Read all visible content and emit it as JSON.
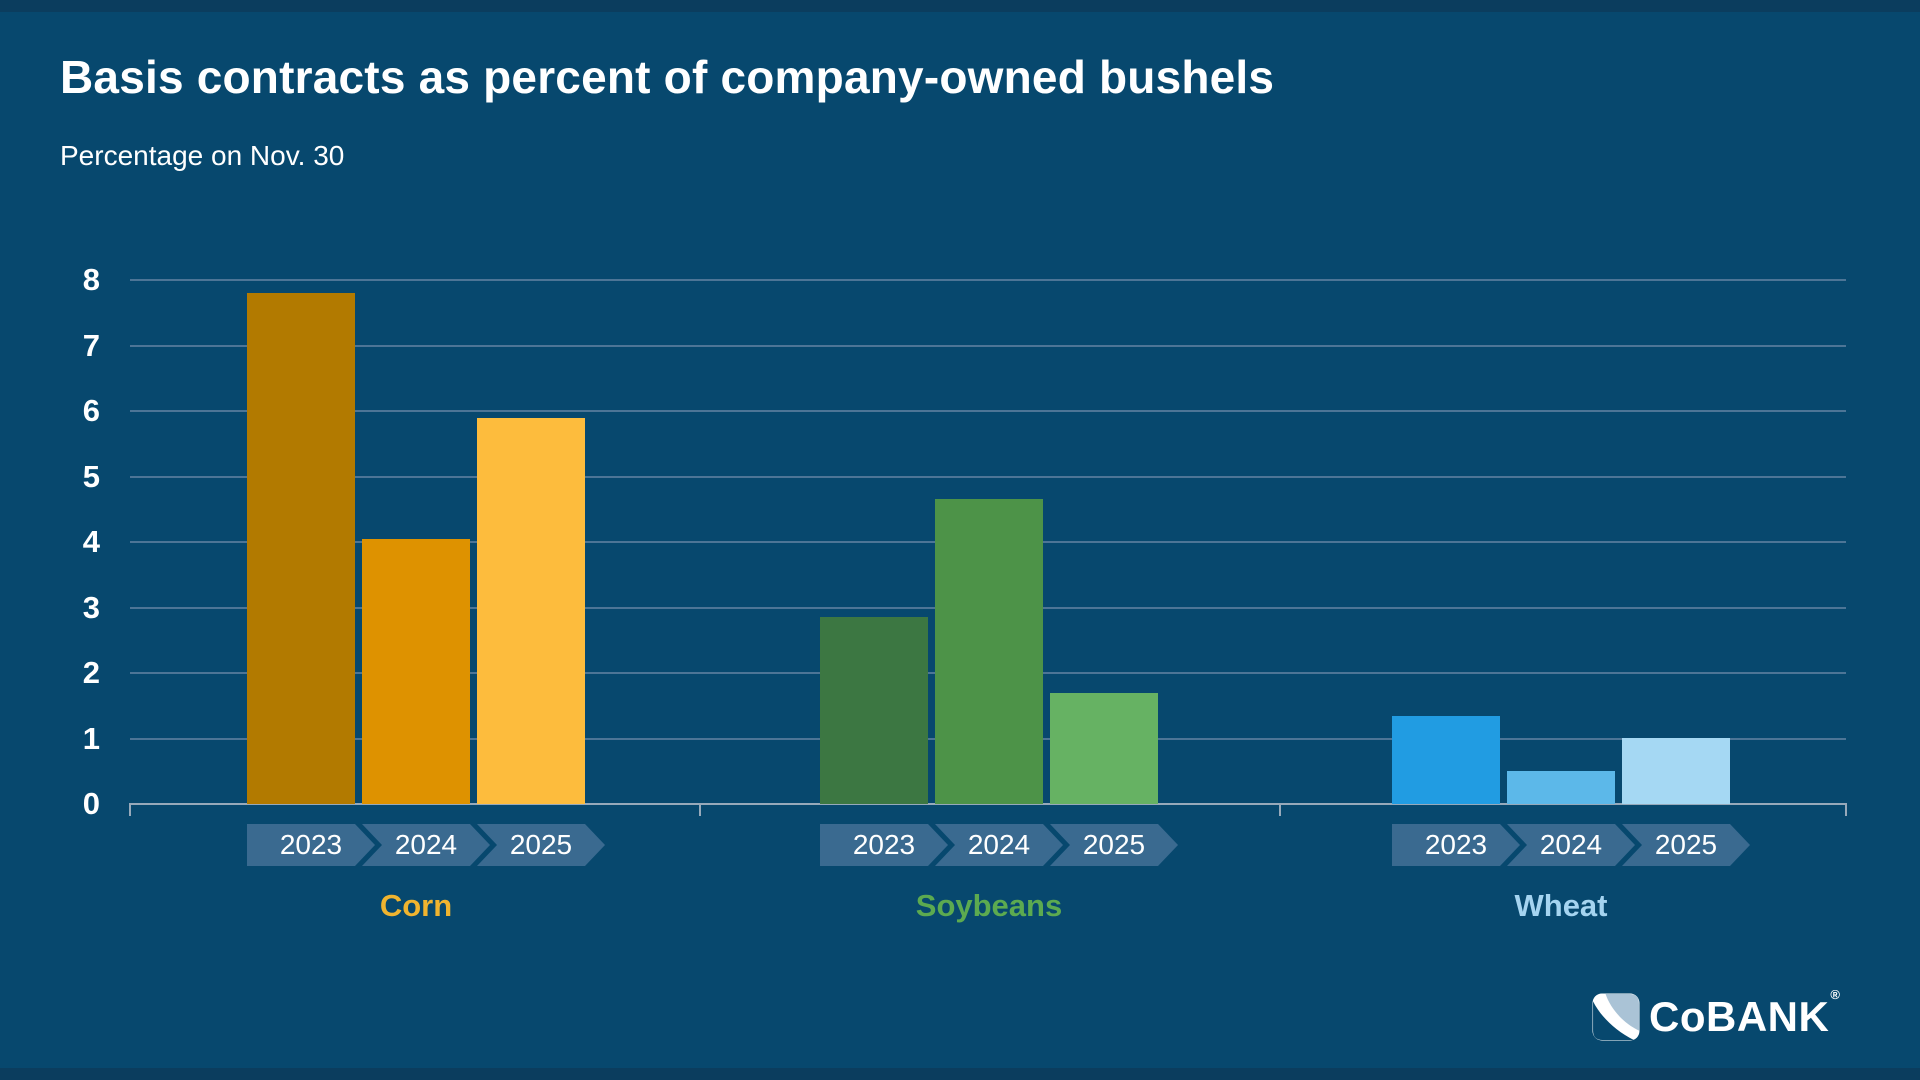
{
  "page": {
    "background": "#07486e",
    "edge_band_color": "#0b3d5e"
  },
  "header": {
    "title": "Basis contracts as percent of company-owned bushels",
    "subtitle": "Percentage on Nov. 30"
  },
  "chart_data": {
    "type": "bar",
    "title": "Basis contracts as percent of company-owned bushels",
    "subtitle": "Percentage on Nov. 30",
    "xlabel": "",
    "ylabel": "",
    "ylim": [
      0,
      8
    ],
    "yticks": [
      0,
      1,
      2,
      3,
      4,
      5,
      6,
      7,
      8
    ],
    "grid": true,
    "legend_position": "none",
    "categories": [
      "2023",
      "2024",
      "2025"
    ],
    "groups": [
      {
        "name": "Corn",
        "values": [
          7.8,
          4.05,
          5.9
        ],
        "bar_colors": [
          "#b27a00",
          "#de9200",
          "#fdbc3d"
        ],
        "label_color": "#f0b42f"
      },
      {
        "name": "Soybeans",
        "values": [
          2.85,
          4.65,
          1.7
        ],
        "bar_colors": [
          "#3c7742",
          "#4d9348",
          "#66b263"
        ],
        "label_color": "#5caa50"
      },
      {
        "name": "Wheat",
        "values": [
          1.35,
          0.5,
          1.0
        ],
        "bar_colors": [
          "#219ce2",
          "#5cb8e9",
          "#a5d8f3"
        ],
        "label_color": "#a5d4f0"
      }
    ],
    "year_tag_color": "#3a6a90",
    "gridline_color": "#4d7596",
    "axis_color": "#97a9ba"
  },
  "footer": {
    "logo_text": "CoBANK",
    "logo_reg": "®"
  }
}
